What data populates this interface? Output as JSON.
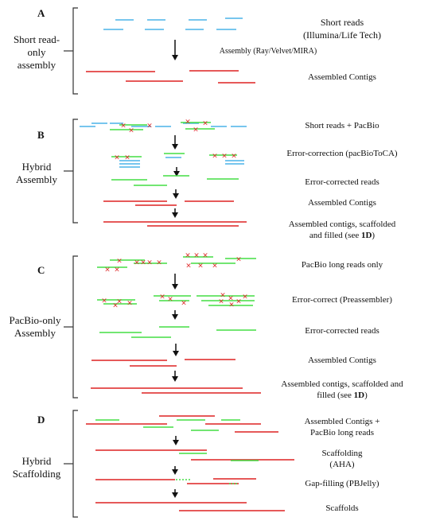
{
  "colors": {
    "short_read": "#4ab3e8",
    "pacbio": "#44dd44",
    "contig": "#dd2222",
    "error_mark": "#dd2222",
    "arrow": "#111111",
    "bracket": "#333333"
  },
  "panels": [
    {
      "letter": "A",
      "title_lines": [
        "Short read-",
        "only",
        "assembly"
      ],
      "steps": [
        {
          "lines": [
            "Short reads",
            "(Illumina/Life Tech)"
          ]
        },
        {
          "lines": [
            "Assembly (Ray/Velvet/MIRA)"
          ]
        },
        {
          "lines": [
            "Assembled Contigs"
          ]
        }
      ]
    },
    {
      "letter": "B",
      "title_lines": [
        "Hybrid",
        "Assembly"
      ],
      "steps": [
        {
          "lines": [
            "Short reads + PacBio"
          ]
        },
        {
          "lines": [
            "Error-correction (pacBioToCA)"
          ]
        },
        {
          "lines": [
            "Error-corrected reads"
          ]
        },
        {
          "lines": [
            "Assembled Contigs"
          ]
        },
        {
          "lines": [
            "Assembled contigs, scaffolded",
            "and filled (see "
          ],
          "bold_suffix": "1D",
          "suffix": ")"
        }
      ]
    },
    {
      "letter": "C",
      "title_lines": [
        "PacBio-only",
        "Assembly"
      ],
      "steps": [
        {
          "lines": [
            "PacBio long reads only"
          ]
        },
        {
          "lines": [
            "Error-correct (Preassembler)"
          ]
        },
        {
          "lines": [
            "Error-corrected reads"
          ]
        },
        {
          "lines": [
            "Assembled Contigs"
          ]
        },
        {
          "lines": [
            "Assembled contigs, scaffolded and",
            "filled (see "
          ],
          "bold_suffix": "1D",
          "suffix": ")"
        }
      ]
    },
    {
      "letter": "D",
      "title_lines": [
        "Hybrid",
        "Scaffolding"
      ],
      "steps": [
        {
          "lines": [
            "Assembled Contigs +",
            "PacBio long reads"
          ]
        },
        {
          "lines": [
            "Scaffolding",
            "(AHA)"
          ]
        },
        {
          "lines": [
            "Gap-filling (PBJelly)"
          ]
        },
        {
          "lines": [
            "Scaffolds"
          ]
        }
      ]
    }
  ],
  "error_mark_glyph": "×"
}
